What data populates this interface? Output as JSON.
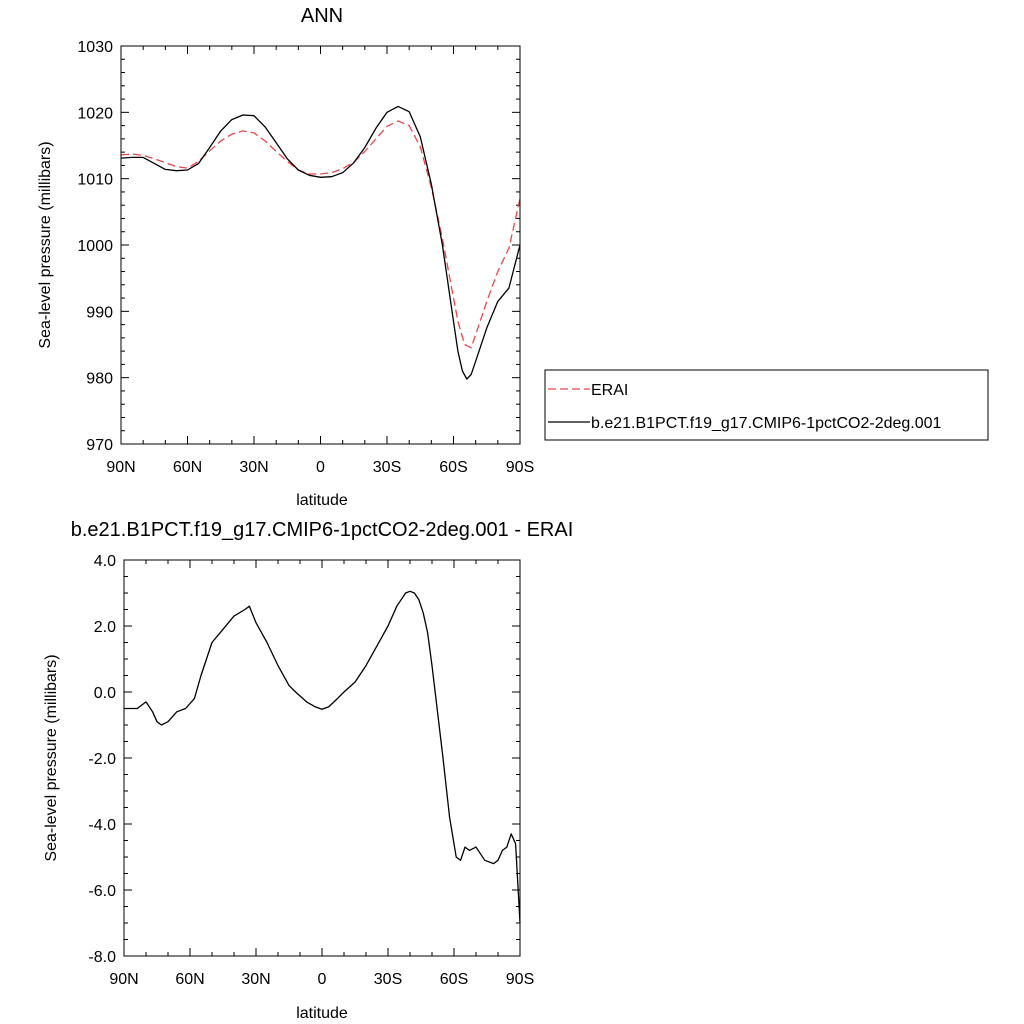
{
  "chart_data": [
    {
      "type": "line",
      "title": "ANN",
      "xlabel": "latitude",
      "ylabel": "Sea-level pressure (millibars)",
      "xlim": [
        -90,
        90
      ],
      "ylim": [
        970,
        1030
      ],
      "x_ticks": [
        {
          "value": -90,
          "label": "90N"
        },
        {
          "value": -60,
          "label": "60N"
        },
        {
          "value": -30,
          "label": "30N"
        },
        {
          "value": 0,
          "label": "0"
        },
        {
          "value": 30,
          "label": "30S"
        },
        {
          "value": 60,
          "label": "60S"
        },
        {
          "value": 90,
          "label": "90S"
        }
      ],
      "y_ticks": [
        {
          "value": 970,
          "label": "970"
        },
        {
          "value": 980,
          "label": "980"
        },
        {
          "value": 990,
          "label": "990"
        },
        {
          "value": 1000,
          "label": "1000"
        },
        {
          "value": 1010,
          "label": "1010"
        },
        {
          "value": 1020,
          "label": "1020"
        },
        {
          "value": 1030,
          "label": "1030"
        }
      ],
      "legend": {
        "placement": "right"
      },
      "series": [
        {
          "name": "ERAI",
          "color": "#e8474c",
          "dash": true,
          "x": [
            -90,
            -85,
            -80,
            -75,
            -70,
            -65,
            -60,
            -55,
            -50,
            -45,
            -40,
            -35,
            -30,
            -25,
            -20,
            -15,
            -10,
            -5,
            0,
            5,
            10,
            15,
            20,
            25,
            30,
            35,
            40,
            45,
            50,
            55,
            60,
            62,
            65,
            68,
            70,
            75,
            80,
            85,
            90
          ],
          "y": [
            1013.6,
            1013.7,
            1013.5,
            1013.0,
            1012.4,
            1011.8,
            1011.6,
            1012.6,
            1014.2,
            1015.7,
            1016.7,
            1017.2,
            1016.9,
            1015.7,
            1014.1,
            1012.6,
            1011.3,
            1010.7,
            1010.7,
            1010.9,
            1011.5,
            1012.5,
            1014.1,
            1016.0,
            1017.9,
            1018.7,
            1018.0,
            1014.8,
            1008.7,
            1001.0,
            992.0,
            988.5,
            985.0,
            984.5,
            986.5,
            991.5,
            996.0,
            999.5,
            1007.0
          ]
        },
        {
          "name": "b.e21.B1PCT.f19_g17.CMIP6-1pctCO2-2deg.001",
          "color": "#000000",
          "dash": false,
          "x": [
            -90,
            -85,
            -80,
            -75,
            -70,
            -65,
            -60,
            -55,
            -50,
            -45,
            -40,
            -35,
            -30,
            -25,
            -20,
            -15,
            -10,
            -5,
            0,
            5,
            10,
            15,
            20,
            25,
            30,
            35,
            40,
            45,
            50,
            55,
            60,
            62,
            64,
            66,
            68,
            70,
            75,
            80,
            85,
            90
          ],
          "y": [
            1013.1,
            1013.2,
            1013.2,
            1012.3,
            1011.4,
            1011.2,
            1011.3,
            1012.3,
            1014.7,
            1017.2,
            1018.9,
            1019.6,
            1019.5,
            1017.8,
            1015.4,
            1013.0,
            1011.3,
            1010.5,
            1010.2,
            1010.3,
            1010.9,
            1012.4,
            1014.7,
            1017.6,
            1020.0,
            1020.9,
            1020.1,
            1016.3,
            1009.2,
            1000.0,
            988.5,
            984.0,
            981.0,
            979.8,
            980.5,
            982.5,
            987.5,
            991.5,
            993.5,
            1000.0
          ]
        }
      ]
    },
    {
      "type": "line",
      "title": "b.e21.B1PCT.f19_g17.CMIP6-1pctCO2-2deg.001 - ERAI",
      "xlabel": "latitude",
      "ylabel": "Sea-level pressure (millibars)",
      "xlim": [
        -90,
        90
      ],
      "ylim": [
        -8,
        4
      ],
      "x_ticks": [
        {
          "value": -90,
          "label": "90N"
        },
        {
          "value": -60,
          "label": "60N"
        },
        {
          "value": -30,
          "label": "30N"
        },
        {
          "value": 0,
          "label": "0"
        },
        {
          "value": 30,
          "label": "30S"
        },
        {
          "value": 60,
          "label": "60S"
        },
        {
          "value": 90,
          "label": "90S"
        }
      ],
      "y_ticks": [
        {
          "value": -8,
          "label": "-8.0"
        },
        {
          "value": -6,
          "label": "-6.0"
        },
        {
          "value": -4,
          "label": "-4.0"
        },
        {
          "value": -2,
          "label": "-2.0"
        },
        {
          "value": 0,
          "label": "0.0"
        },
        {
          "value": 2,
          "label": "2.0"
        },
        {
          "value": 4,
          "label": "4.0"
        }
      ],
      "series": [
        {
          "name": "b.e21.B1PCT.f19_g17.CMIP6-1pctCO2-2deg.001 - ERAI",
          "color": "#000000",
          "dash": false,
          "x": [
            -90,
            -84,
            -80,
            -77,
            -75,
            -73,
            -70,
            -66,
            -62,
            -58,
            -55,
            -50,
            -45,
            -40,
            -35,
            -33,
            -30,
            -25,
            -20,
            -15,
            -12,
            -7,
            -3,
            0,
            3,
            7,
            10,
            15,
            20,
            25,
            30,
            34,
            37,
            38,
            40,
            42,
            44,
            46,
            48,
            50,
            55,
            58,
            61,
            63,
            65,
            67,
            70,
            72,
            74,
            78,
            80,
            82,
            84,
            86,
            88,
            90
          ],
          "y": [
            -0.5,
            -0.5,
            -0.3,
            -0.6,
            -0.9,
            -1.0,
            -0.9,
            -0.6,
            -0.5,
            -0.2,
            0.5,
            1.5,
            1.9,
            2.3,
            2.5,
            2.6,
            2.1,
            1.5,
            0.8,
            0.2,
            0.0,
            -0.3,
            -0.45,
            -0.52,
            -0.45,
            -0.2,
            0.0,
            0.3,
            0.8,
            1.4,
            2.0,
            2.6,
            2.9,
            3.0,
            3.05,
            3.0,
            2.8,
            2.4,
            1.8,
            0.8,
            -2.0,
            -3.8,
            -5.0,
            -5.1,
            -4.7,
            -4.8,
            -4.7,
            -4.9,
            -5.1,
            -5.2,
            -5.1,
            -4.8,
            -4.7,
            -4.3,
            -4.6,
            -7.0
          ]
        }
      ]
    }
  ]
}
